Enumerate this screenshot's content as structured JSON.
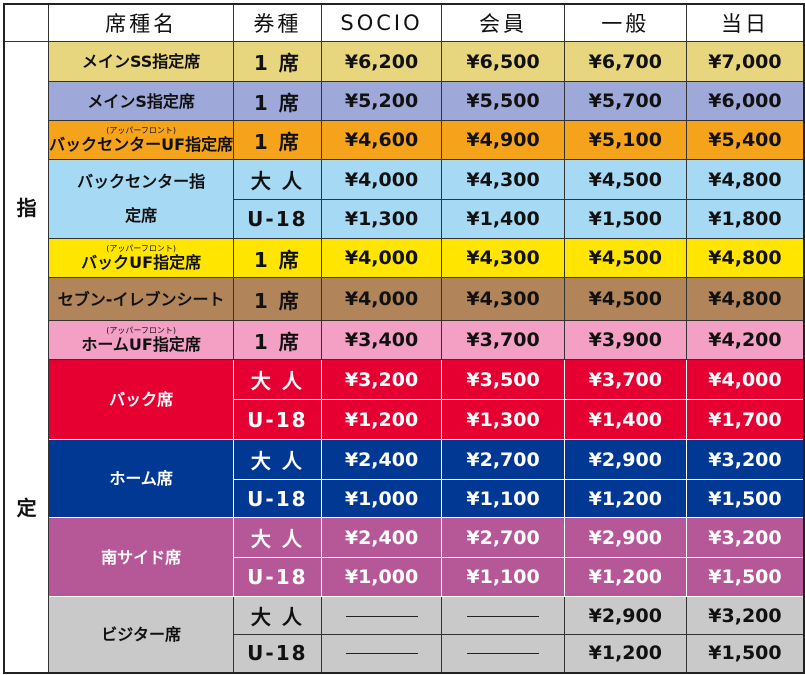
{
  "header": {
    "corner": "",
    "seat_name": "席種名",
    "ticket_type": "券種",
    "socio": "SOCIO",
    "member": "会員",
    "general": "一般",
    "day_of": "当日"
  },
  "side_label": {
    "top": "指",
    "bottom": "定"
  },
  "empty_mark": "———",
  "seats": [
    {
      "name": "メインSS指定席",
      "sub": "",
      "color": "#e8d67e",
      "text": "dark",
      "rows": [
        {
          "type": "1 席",
          "prices": [
            "¥6,200",
            "¥6,500",
            "¥6,700",
            "¥7,000"
          ]
        }
      ]
    },
    {
      "name": "メインS指定席",
      "sub": "",
      "color": "#9ea9d9",
      "text": "dark",
      "rows": [
        {
          "type": "1 席",
          "prices": [
            "¥5,200",
            "¥5,500",
            "¥5,700",
            "¥6,000"
          ]
        }
      ]
    },
    {
      "name": "バックセンターUF指定席",
      "sub": "(アッパーフロント)",
      "color": "#f5a31b",
      "text": "dark",
      "rows": [
        {
          "type": "1 席",
          "prices": [
            "¥4,600",
            "¥4,900",
            "¥5,100",
            "¥5,400"
          ]
        }
      ]
    },
    {
      "name": "バックセンター指定席",
      "sub": "",
      "color": "#a6d9f4",
      "text": "dark",
      "rows": [
        {
          "type": "大 人",
          "prices": [
            "¥4,000",
            "¥4,300",
            "¥4,500",
            "¥4,800"
          ]
        },
        {
          "type": "U-18",
          "prices": [
            "¥1,300",
            "¥1,400",
            "¥1,500",
            "¥1,800"
          ]
        }
      ]
    },
    {
      "name": "バックUF指定席",
      "sub": "(アッパーフロント)",
      "color": "#ffe500",
      "text": "dark",
      "rows": [
        {
          "type": "1 席",
          "prices": [
            "¥4,000",
            "¥4,300",
            "¥4,500",
            "¥4,800"
          ]
        }
      ]
    },
    {
      "name": "セブン-イレブンシート",
      "sub": "",
      "color": "#b1845a",
      "text": "dark",
      "rows": [
        {
          "type": "1 席",
          "prices": [
            "¥4,000",
            "¥4,300",
            "¥4,500",
            "¥4,800"
          ]
        }
      ]
    },
    {
      "name": "ホームUF指定席",
      "sub": "(アッパーフロント)",
      "color": "#f3a0c4",
      "text": "dark",
      "rows": [
        {
          "type": "1 席",
          "prices": [
            "¥3,400",
            "¥3,700",
            "¥3,900",
            "¥4,200"
          ]
        }
      ]
    },
    {
      "name": "バック席",
      "sub": "",
      "color": "#e60032",
      "text": "light",
      "rows": [
        {
          "type": "大 人",
          "prices": [
            "¥3,200",
            "¥3,500",
            "¥3,700",
            "¥4,000"
          ]
        },
        {
          "type": "U-18",
          "prices": [
            "¥1,200",
            "¥1,300",
            "¥1,400",
            "¥1,700"
          ]
        }
      ]
    },
    {
      "name": "ホーム席",
      "sub": "",
      "color": "#003893",
      "text": "light",
      "rows": [
        {
          "type": "大 人",
          "prices": [
            "¥2,400",
            "¥2,700",
            "¥2,900",
            "¥3,200"
          ]
        },
        {
          "type": "U-18",
          "prices": [
            "¥1,000",
            "¥1,100",
            "¥1,200",
            "¥1,500"
          ]
        }
      ]
    },
    {
      "name": "南サイド席",
      "sub": "",
      "color": "#b65798",
      "text": "light",
      "rows": [
        {
          "type": "大 人",
          "prices": [
            "¥2,400",
            "¥2,700",
            "¥2,900",
            "¥3,200"
          ]
        },
        {
          "type": "U-18",
          "prices": [
            "¥1,000",
            "¥1,100",
            "¥1,200",
            "¥1,500"
          ]
        }
      ]
    },
    {
      "name": "ビジター席",
      "sub": "",
      "color": "#c9c9c9",
      "text": "dark",
      "rows": [
        {
          "type": "大 人",
          "prices": [
            "",
            "",
            "¥2,900",
            "¥3,200"
          ]
        },
        {
          "type": "U-18",
          "prices": [
            "",
            "",
            "¥1,200",
            "¥1,500"
          ]
        }
      ]
    }
  ]
}
